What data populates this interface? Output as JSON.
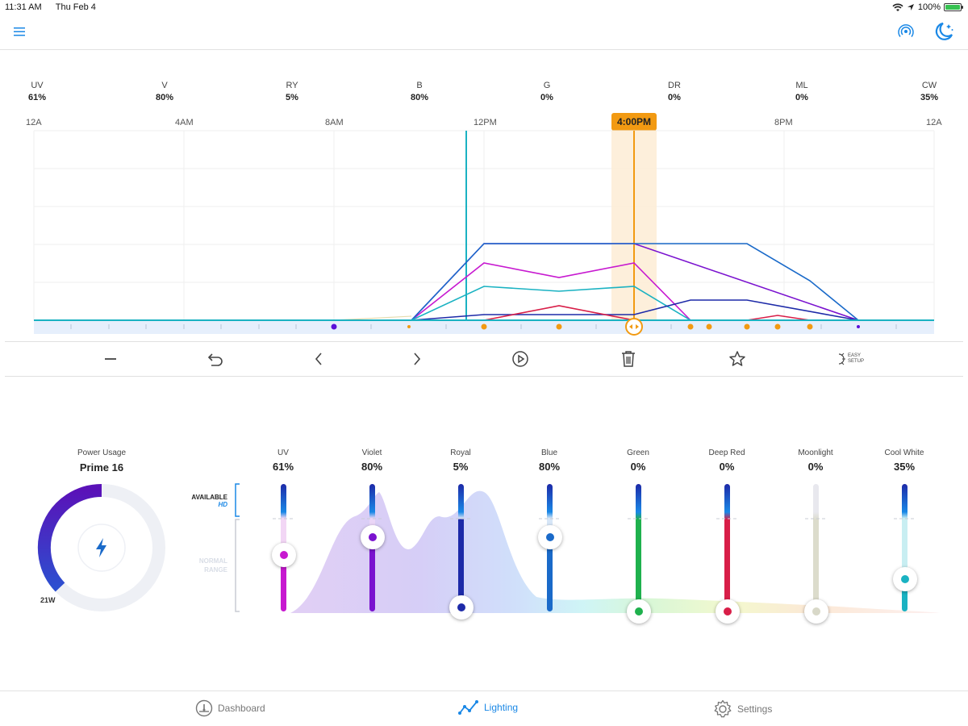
{
  "status_bar": {
    "time": "11:31 AM",
    "date": "Thu Feb 4",
    "battery": "100%"
  },
  "channels": [
    {
      "code": "UV",
      "value": "61%"
    },
    {
      "code": "V",
      "value": "80%"
    },
    {
      "code": "RY",
      "value": "5%"
    },
    {
      "code": "B",
      "value": "80%"
    },
    {
      "code": "G",
      "value": "0%"
    },
    {
      "code": "DR",
      "value": "0%"
    },
    {
      "code": "ML",
      "value": "0%"
    },
    {
      "code": "CW",
      "value": "35%"
    }
  ],
  "timeline": {
    "labels": [
      "12A",
      "4AM",
      "8AM",
      "12PM",
      "4:00PM",
      "8PM",
      "12A"
    ],
    "current_time": "4:00PM"
  },
  "toolbar": {
    "easy_setup_line1": "EASY",
    "easy_setup_line2": "SETUP"
  },
  "power": {
    "title": "Power Usage",
    "device": "Prime 16",
    "watts": "21W",
    "usage_fraction": 0.4
  },
  "legend": {
    "available": "AVAILABLE",
    "hd": "HD",
    "normal_line1": "NORMAL",
    "normal_line2": "RANGE"
  },
  "sliders": [
    {
      "name": "UV",
      "value": "61%",
      "color": "#c719d0"
    },
    {
      "name": "Violet",
      "value": "80%",
      "color": "#7a12cf"
    },
    {
      "name": "Royal",
      "value": "5%",
      "color": "#1d2aa8"
    },
    {
      "name": "Blue",
      "value": "80%",
      "color": "#1a6ac9"
    },
    {
      "name": "Green",
      "value": "0%",
      "color": "#1fb14d"
    },
    {
      "name": "Deep Red",
      "value": "0%",
      "color": "#d81e48"
    },
    {
      "name": "Moonlight",
      "value": "0%",
      "color": "#d8d8c8"
    },
    {
      "name": "Cool White",
      "value": "35%",
      "color": "#1ab2c2"
    }
  ],
  "bottom_nav": {
    "dashboard": "Dashboard",
    "lighting": "Lighting",
    "settings": "Settings"
  },
  "colors": {
    "accent": "#1a88e6",
    "marker": "#f29a12"
  }
}
